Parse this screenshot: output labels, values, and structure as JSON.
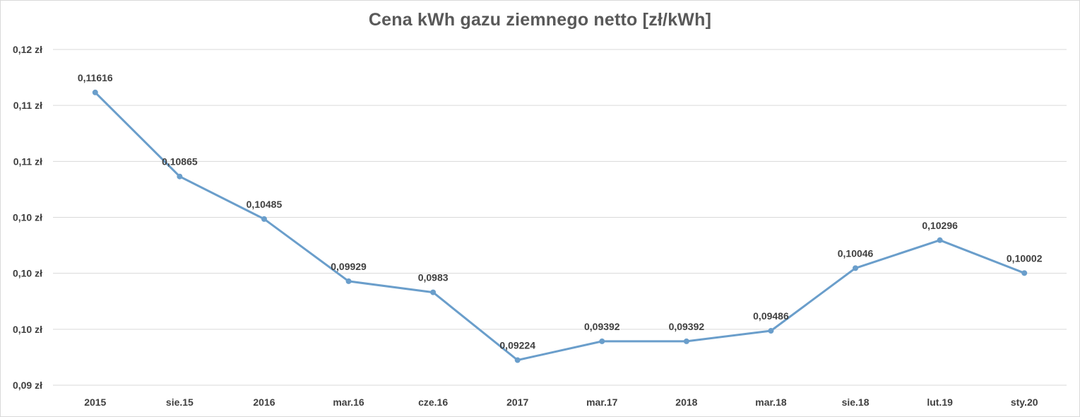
{
  "chart_data": {
    "type": "line",
    "title": "Cena kWh gazu ziemnego netto [zł/kWh]",
    "categories": [
      "2015",
      "sie.15",
      "2016",
      "mar.16",
      "cze.16",
      "2017",
      "mar.17",
      "2018",
      "mar.18",
      "sie.18",
      "lut.19",
      "sty.20"
    ],
    "series": [
      {
        "values": [
          0.11616,
          0.10865,
          0.10485,
          0.09929,
          0.0983,
          0.09224,
          0.09392,
          0.09392,
          0.09486,
          0.10046,
          0.10296,
          0.10002
        ],
        "labels": [
          "0,11616",
          "0,10865",
          "0,10485",
          "0,09929",
          "0,0983",
          "0,09224",
          "0,09392",
          "0,09392",
          "0,09486",
          "0,10046",
          "0,10296",
          "0,10002"
        ]
      }
    ],
    "ylim": [
      0.09,
      0.12
    ],
    "yticks": [
      0.09,
      0.095,
      0.1,
      0.105,
      0.11,
      0.115,
      0.12
    ],
    "ytick_labels": [
      "0,09 zł",
      "0,10 zł",
      "0,10 zł",
      "0,10 zł",
      "0,11 zł",
      "0,11 zł",
      "0,12 zł"
    ],
    "grid": true,
    "legend": "none",
    "colors": {
      "line": "#6a9ecb",
      "grid": "#d9d9d9",
      "text": "#404040",
      "title": "#595959"
    }
  }
}
